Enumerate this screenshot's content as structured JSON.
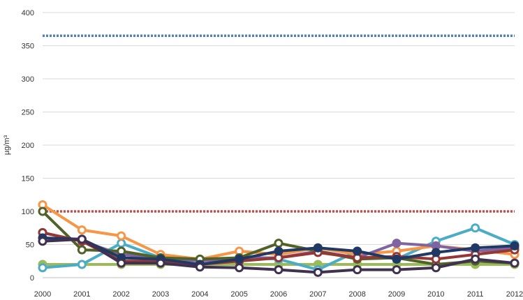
{
  "chart_data": {
    "type": "line",
    "title": "",
    "xlabel": "",
    "ylabel": "µg/m³",
    "ylim": [
      0,
      400
    ],
    "yticks": [
      0,
      50,
      100,
      150,
      200,
      250,
      300,
      350,
      400
    ],
    "grid": true,
    "legend": "none",
    "categories": [
      "2000",
      "2001",
      "2002",
      "2003",
      "2004",
      "2005",
      "2006",
      "2007",
      "2008",
      "2009",
      "2010",
      "2011",
      "2012"
    ],
    "reference_lines": [
      {
        "value": 365,
        "color": "#4f81bd",
        "style": "dashed"
      },
      {
        "value": 100,
        "color": "#c0504d",
        "style": "dashed"
      }
    ],
    "series": [
      {
        "color": "#9bbb59",
        "hollow": false,
        "values": [
          20,
          20,
          20,
          20,
          20,
          20,
          20,
          20,
          20,
          20,
          20,
          20,
          20
        ]
      },
      {
        "color": "#4bacc6",
        "hollow": true,
        "values": [
          15,
          20,
          52,
          30,
          27,
          30,
          28,
          12,
          40,
          28,
          55,
          75,
          50
        ]
      },
      {
        "color": "#f79646",
        "hollow": true,
        "values": [
          110,
          72,
          63,
          35,
          28,
          40,
          35,
          45,
          35,
          40,
          48,
          42,
          35
        ]
      },
      {
        "color": "#8064a2",
        "hollow": false,
        "values": [
          68,
          55,
          35,
          30,
          25,
          30,
          30,
          40,
          30,
          52,
          48,
          40,
          45
        ]
      },
      {
        "color": "#4f6228",
        "hollow": true,
        "values": [
          100,
          42,
          40,
          30,
          28,
          30,
          52,
          40,
          28,
          30,
          20,
          25,
          22
        ]
      },
      {
        "color": "#953735",
        "hollow": true,
        "values": [
          68,
          55,
          25,
          25,
          20,
          25,
          30,
          38,
          30,
          32,
          28,
          35,
          42
        ]
      },
      {
        "color": "#1f3864",
        "hollow": false,
        "values": [
          60,
          58,
          30,
          28,
          20,
          28,
          40,
          45,
          40,
          28,
          38,
          45,
          48
        ]
      },
      {
        "color": "#403151",
        "hollow": true,
        "values": [
          55,
          58,
          22,
          22,
          16,
          15,
          12,
          8,
          12,
          12,
          15,
          28,
          22
        ]
      }
    ]
  }
}
